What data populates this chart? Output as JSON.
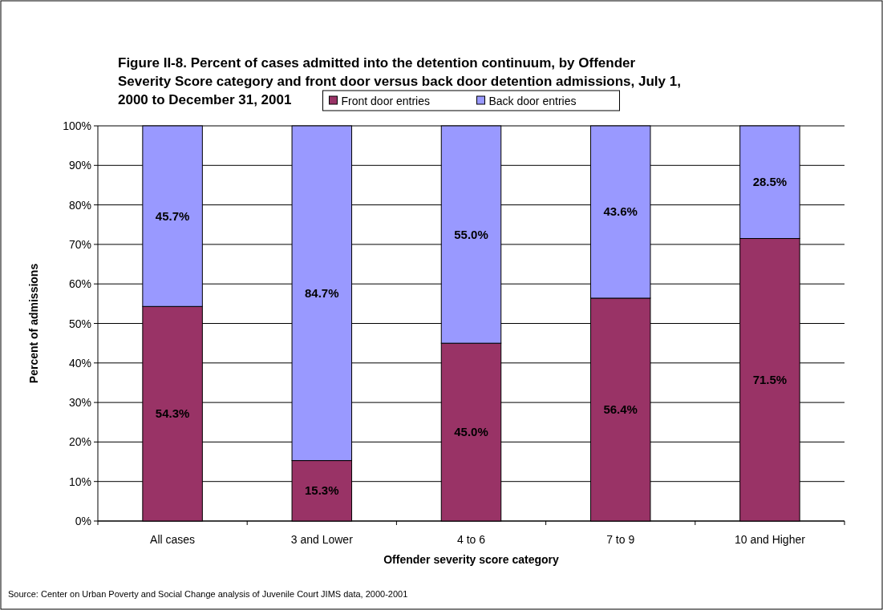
{
  "chart_data": {
    "type": "bar",
    "title": "Figure II-8.  Percent of cases admitted into the detention continuum, by Offender Severity Score category and front door versus back door detention admissions, July 1, 2000 to December 31, 2001",
    "xlabel": "Offender severity score category",
    "ylabel": "Percent of admissions",
    "annotations": [
      "Source: Center on Urban Poverty and Social Change analysis of Juvenile Court JIMS data, 2000-2001"
    ],
    "categories": [
      "All cases",
      "3 and Lower",
      "4 to 6",
      "7 to 9",
      "10 and Higher"
    ],
    "stacked": true,
    "series": [
      {
        "name": "Front door entries",
        "color": "#993366",
        "values": [
          54.3,
          15.3,
          45.0,
          56.4,
          71.5
        ],
        "value_labels": [
          "54.3%",
          "15.3%",
          "45.0%",
          "56.4%",
          "71.5%"
        ]
      },
      {
        "name": "Back door entries",
        "color": "#9999ff",
        "values": [
          45.7,
          84.7,
          55.0,
          43.6,
          28.5
        ],
        "value_labels": [
          "45.7%",
          "84.7%",
          "55.0%",
          "43.6%",
          "28.5%"
        ]
      }
    ],
    "ylim": [
      0,
      100
    ],
    "yticks": [
      {
        "value": 0,
        "label": "0%"
      },
      {
        "value": 10,
        "label": "10%"
      },
      {
        "value": 20,
        "label": "20%"
      },
      {
        "value": 30,
        "label": "30%"
      },
      {
        "value": 40,
        "label": "40%"
      },
      {
        "value": 50,
        "label": "50%"
      },
      {
        "value": 60,
        "label": "60%"
      },
      {
        "value": 70,
        "label": "70%"
      },
      {
        "value": 80,
        "label": "80%"
      },
      {
        "value": 90,
        "label": "90%"
      },
      {
        "value": 100,
        "label": "100%"
      }
    ],
    "grid": "y",
    "legend": "top"
  }
}
